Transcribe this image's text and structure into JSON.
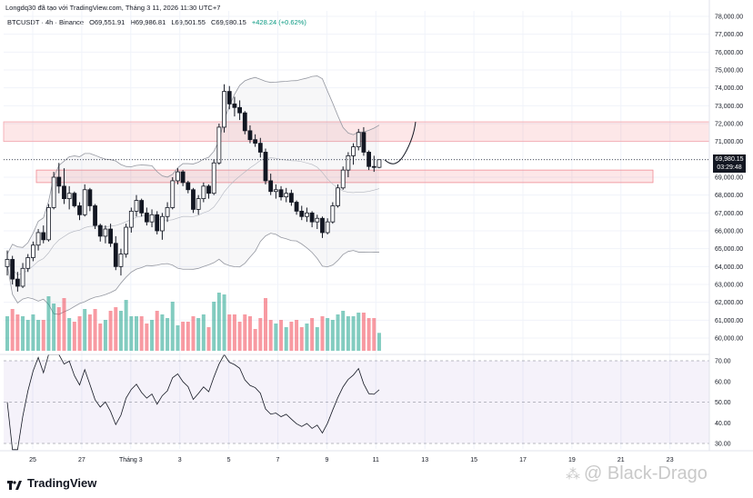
{
  "header": {
    "published_by": "Longdq30 đã tạo với TradingView.com, Tháng 3 11, 2026 11:30 UTC+7",
    "symbol": "BTCUSDT · 4h · Binance",
    "open": "O69,551.91",
    "high": "H69,986.81",
    "low": "L69,501.55",
    "close": "C69,980.15",
    "change": "+428.24 (+0.62%)"
  },
  "price_axis": {
    "labels": [
      "78,000.00",
      "77,000.00",
      "76,000.00",
      "75,000.00",
      "74,000.00",
      "73,000.00",
      "72,000.00",
      "71,000.00",
      "70,000.00",
      "69,000.00",
      "68,000.00",
      "67,000.00",
      "66,000.00",
      "65,000.00",
      "64,000.00",
      "63,000.00",
      "62,000.00",
      "61,000.00",
      "60,000.00"
    ],
    "current_price": "69,980.15",
    "countdown": "03:29:48"
  },
  "rsi_axis": {
    "labels": [
      "70.00",
      "60.00",
      "50.00",
      "40.00",
      "30.00"
    ]
  },
  "time_axis": {
    "labels": [
      "25",
      "27",
      "Tháng 3",
      "3",
      "5",
      "7",
      "9",
      "11",
      "13",
      "15",
      "17",
      "19",
      "21",
      "23"
    ]
  },
  "chart_data": {
    "type": "candlestick",
    "symbol": "BTCUSDT",
    "interval": "4h",
    "exchange": "Binance",
    "ylim": [
      60000,
      78000
    ],
    "rsi_levels": [
      70,
      50,
      30
    ],
    "zones": [
      {
        "from": 71000,
        "to": 72100
      },
      {
        "from": 68700,
        "to": 69400
      }
    ],
    "last_close": 69980.15,
    "candles": [
      [
        64000,
        64900,
        63500,
        64400
      ],
      [
        64400,
        64600,
        63000,
        63300
      ],
      [
        63300,
        63700,
        62600,
        62900
      ],
      [
        62900,
        64200,
        62800,
        63900
      ],
      [
        63900,
        64700,
        63700,
        64500
      ],
      [
        64500,
        65400,
        64300,
        65200
      ],
      [
        65200,
        66100,
        64900,
        65900
      ],
      [
        65900,
        66300,
        65300,
        65500
      ],
      [
        65500,
        67500,
        65400,
        67300
      ],
      [
        67300,
        69300,
        67200,
        69000
      ],
      [
        69000,
        69800,
        68100,
        68500
      ],
      [
        68500,
        69500,
        67500,
        67800
      ],
      [
        67800,
        68500,
        67200,
        68100
      ],
      [
        68100,
        68200,
        67300,
        67400
      ],
      [
        67400,
        67600,
        66600,
        66900
      ],
      [
        66900,
        68600,
        66800,
        68300
      ],
      [
        68300,
        68400,
        67100,
        67400
      ],
      [
        67400,
        67500,
        66100,
        66300
      ],
      [
        66300,
        66400,
        65400,
        65700
      ],
      [
        65700,
        66300,
        65300,
        66100
      ],
      [
        66100,
        66400,
        65100,
        65300
      ],
      [
        65300,
        65700,
        63800,
        64000
      ],
      [
        64000,
        65000,
        63500,
        64700
      ],
      [
        64700,
        66400,
        64500,
        66200
      ],
      [
        66200,
        67300,
        65900,
        67100
      ],
      [
        67100,
        68000,
        66800,
        67700
      ],
      [
        67700,
        67800,
        66800,
        67000
      ],
      [
        67000,
        67300,
        66300,
        66500
      ],
      [
        66500,
        67200,
        66200,
        66900
      ],
      [
        66900,
        67100,
        65800,
        66000
      ],
      [
        66000,
        67000,
        65500,
        66800
      ],
      [
        66800,
        67600,
        66500,
        67300
      ],
      [
        67300,
        69000,
        67200,
        68800
      ],
      [
        68800,
        69500,
        68600,
        69300
      ],
      [
        69300,
        69400,
        68500,
        68700
      ],
      [
        68700,
        68800,
        68100,
        68300
      ],
      [
        68300,
        68400,
        67000,
        67200
      ],
      [
        67200,
        68000,
        66900,
        67800
      ],
      [
        67800,
        68700,
        67600,
        68500
      ],
      [
        68500,
        68600,
        67800,
        68100
      ],
      [
        68100,
        70000,
        68000,
        69800
      ],
      [
        69800,
        72000,
        69700,
        71800
      ],
      [
        71800,
        74200,
        71500,
        73800
      ],
      [
        73800,
        74100,
        72800,
        73100
      ],
      [
        73100,
        73500,
        72400,
        72900
      ],
      [
        72900,
        73300,
        72200,
        72600
      ],
      [
        72600,
        72700,
        71400,
        71600
      ],
      [
        71600,
        71900,
        70900,
        71100
      ],
      [
        71100,
        71400,
        70700,
        70900
      ],
      [
        70900,
        71200,
        70100,
        70400
      ],
      [
        70400,
        70600,
        68600,
        68800
      ],
      [
        68800,
        69200,
        68000,
        68200
      ],
      [
        68200,
        68600,
        67800,
        68300
      ],
      [
        68300,
        68500,
        67700,
        67900
      ],
      [
        67900,
        68400,
        67600,
        68100
      ],
      [
        68100,
        68300,
        67400,
        67600
      ],
      [
        67600,
        67700,
        66900,
        67100
      ],
      [
        67100,
        67400,
        66600,
        66800
      ],
      [
        66800,
        67300,
        66500,
        67000
      ],
      [
        67000,
        67100,
        66200,
        66500
      ],
      [
        66500,
        66900,
        66100,
        66700
      ],
      [
        66700,
        66800,
        65600,
        65900
      ],
      [
        65900,
        66700,
        65800,
        66500
      ],
      [
        66500,
        67600,
        66400,
        67400
      ],
      [
        67400,
        68600,
        67300,
        68400
      ],
      [
        68400,
        69600,
        68300,
        69400
      ],
      [
        69400,
        70400,
        69000,
        70200
      ],
      [
        70200,
        70900,
        69700,
        70700
      ],
      [
        70700,
        71700,
        70500,
        71500
      ],
      [
        71500,
        71800,
        70200,
        70400
      ],
      [
        70400,
        70500,
        69400,
        69600
      ],
      [
        69600,
        70200,
        69300,
        69552
      ],
      [
        69552,
        69987,
        69502,
        69980
      ]
    ],
    "projection": [
      [
        69980,
        69400
      ],
      [
        70300,
        70100
      ],
      [
        72100,
        71400
      ]
    ]
  }
}
